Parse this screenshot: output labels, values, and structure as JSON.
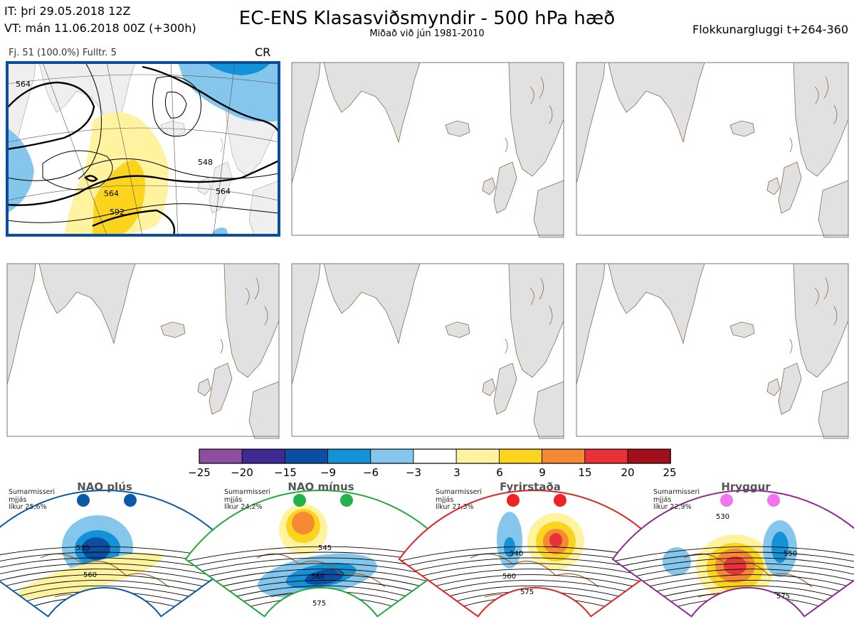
{
  "header": {
    "it_line": "IT: þri 29.05.2018 12Z",
    "vt_line": "VT: mán 11.06.2018 00Z  (+300h)",
    "title": "EC-ENS Klasasviðsmyndir - 500 hPa hæð",
    "subtitle": "Miðað við jún 1981-2010",
    "window": "Flokkunargluggi t+264-360"
  },
  "cluster": {
    "info": "Fj. 51 (100.0%)   Fulltr. 5",
    "tag": "CR",
    "contour_labels": [
      "564",
      "548",
      "564",
      "592",
      "564"
    ],
    "frame_color": "#0a4f9e"
  },
  "colorbar": {
    "ticks": [
      "−25",
      "−20",
      "−15",
      "−9",
      "−6",
      "−3",
      "3",
      "6",
      "9",
      "15",
      "20",
      "25"
    ],
    "colors": [
      "#8e4ea0",
      "#3f2a92",
      "#0b4ea2",
      "#1492d8",
      "#84c6ec",
      "#ffffff",
      "#fff3a0",
      "#fcd41e",
      "#f58a35",
      "#e8323a",
      "#a30f1a"
    ]
  },
  "regimes": [
    {
      "name": "NAO plús",
      "season": "Sumarmisseri",
      "season2": "mjjás",
      "prob": "líkur 25,6%",
      "color": "#0a5aa8",
      "dot_color": "#0a5aa8",
      "labels": [
        "535",
        "560"
      ]
    },
    {
      "name": "NAO mínus",
      "season": "Sumarmisseri",
      "season2": "mjjás",
      "prob": "líkur 24,2%",
      "color": "#23a83c",
      "dot_color": "#23b14c",
      "labels": [
        "545",
        "560",
        "575"
      ]
    },
    {
      "name": "Fyrirstaða",
      "season": "Sumarmisseri",
      "season2": "mjjás",
      "prob": "líkur 27,3%",
      "color": "#e02424",
      "dot_color": "#ee2424",
      "labels": [
        "540",
        "560",
        "575"
      ]
    },
    {
      "name": "Hryggur",
      "season": "Sumarmisseri",
      "season2": "mjjás",
      "prob": "líkur 22,9%",
      "color": "#8a2a92",
      "dot_color": "#ef76ee",
      "labels": [
        "530",
        "550",
        "575"
      ]
    }
  ]
}
